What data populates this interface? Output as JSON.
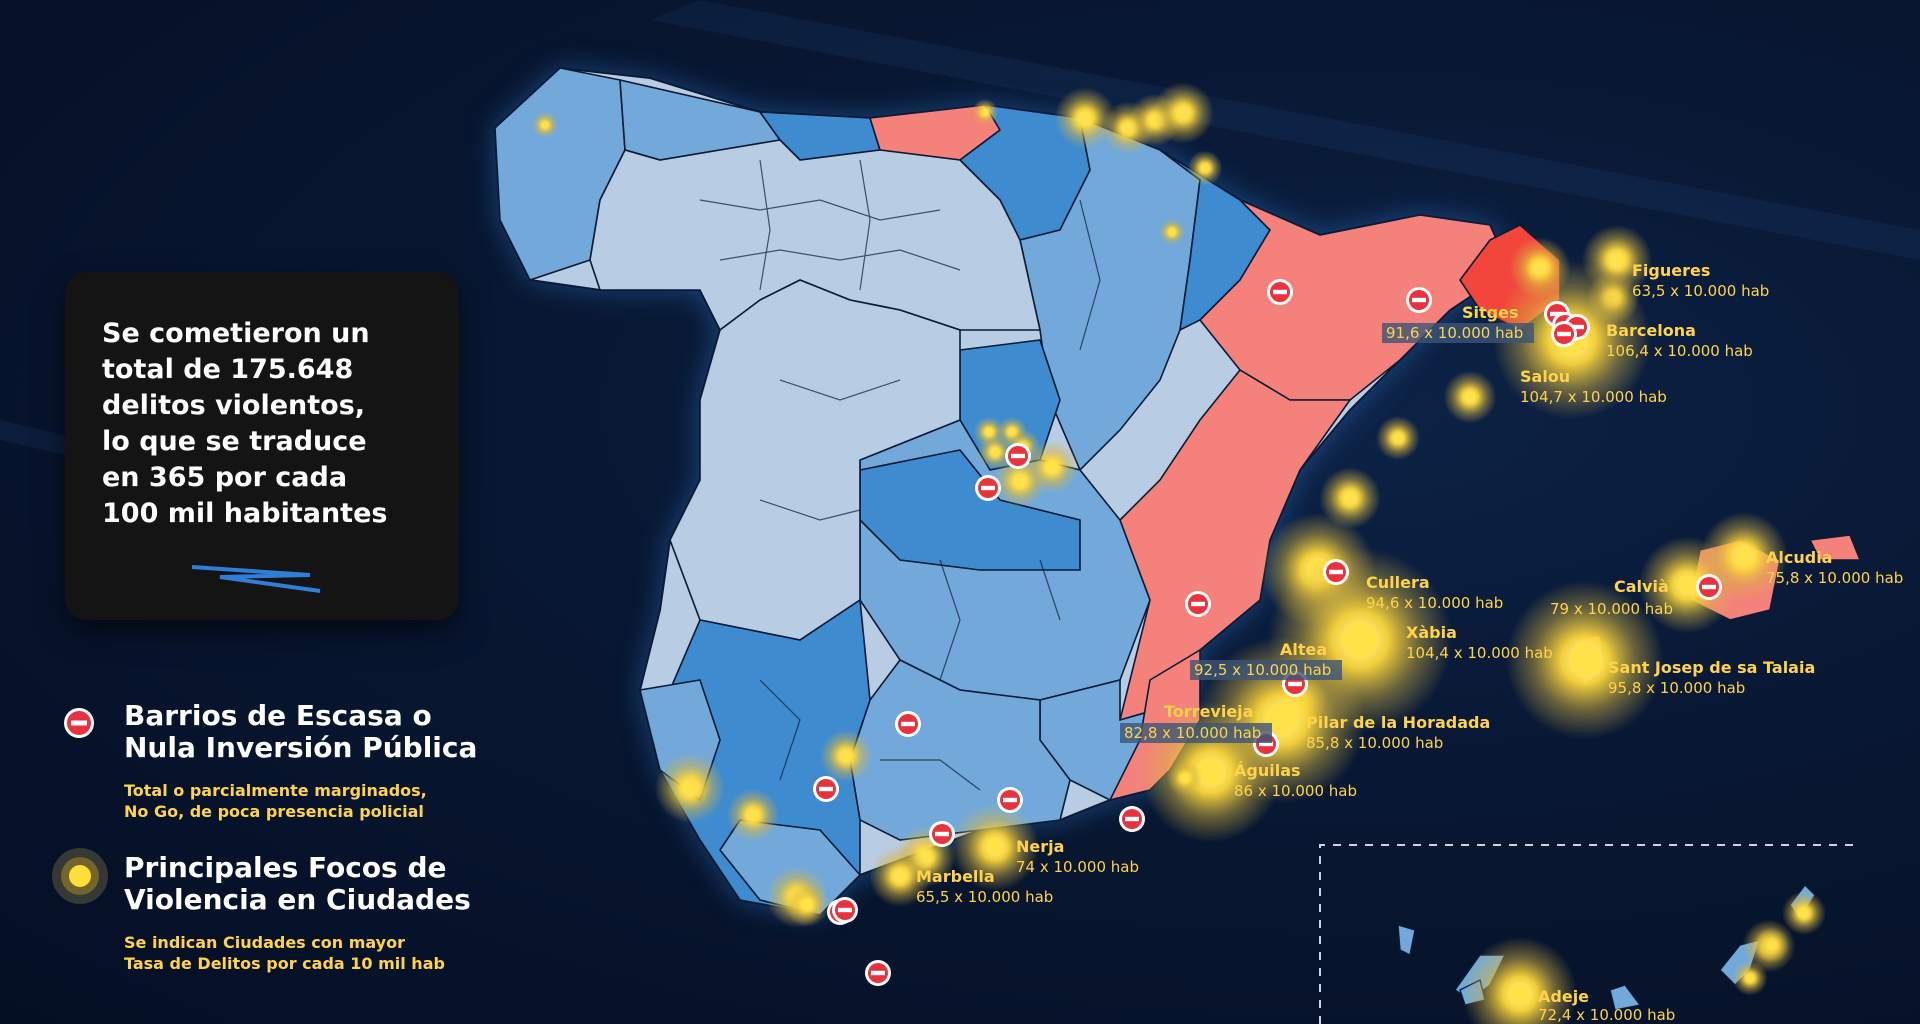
{
  "summary": {
    "lines": [
      "Se cometieron un",
      "total de 175.648",
      "delitos violentos,",
      "lo que se traduce",
      "en 365 por cada",
      "100 mil habitantes"
    ]
  },
  "legend": {
    "barrios_title_1": "Barrios de Escasa o",
    "barrios_title_2": "Nula Inversión Pública",
    "barrios_sub_1": "Total o parcialmente marginados,",
    "barrios_sub_2": "No Go, de poca presencia policial",
    "focos_title_1": "Principales Focos de",
    "focos_title_2": "Violencia en Ciudades",
    "focos_sub_1": "Se indican Ciudades con mayor",
    "focos_sub_2": "Tasa de Delitos por cada 10 mil hab"
  },
  "cities": [
    {
      "name": "Figueres",
      "rate": "63,5 x 10.000 hab"
    },
    {
      "name": "Sitges",
      "rate": "91,6 x 10.000 hab"
    },
    {
      "name": "Barcelona",
      "rate": "106,4 x 10.000 hab"
    },
    {
      "name": "Salou",
      "rate": "104,7 x 10.000 hab"
    },
    {
      "name": "Alcudia",
      "rate": "75,8 x 10.000 hab"
    },
    {
      "name": "Calvià",
      "rate": "79 x 10.000 hab"
    },
    {
      "name": "Cullera",
      "rate": "94,6 x 10.000 hab"
    },
    {
      "name": "Xàbia",
      "rate": "104,4 x 10.000 hab"
    },
    {
      "name": "Altea",
      "rate": "92,5 x 10.000 hab"
    },
    {
      "name": "Sant Josep de sa Talaia",
      "rate": "95,8 x 10.000 hab"
    },
    {
      "name": "Torrevieja",
      "rate": "82,8 x 10.000 hab"
    },
    {
      "name": "Pilar de la Horadada",
      "rate": "85,8 x 10.000 hab"
    },
    {
      "name": "Águilas",
      "rate": "86 x 10.000 hab"
    },
    {
      "name": "Nerja",
      "rate": "74 x 10.000 hab"
    },
    {
      "name": "Marbella",
      "rate": "65,5 x 10.000 hab"
    },
    {
      "name": "Adeje",
      "rate": "72,4 x 10.000 hab"
    }
  ],
  "colors": {
    "background": "#081732",
    "region_light": "#b8cce3",
    "region_mid": "#72a9da",
    "region_dark": "#3e8bd0",
    "region_hot": "#f4827a",
    "region_hotter": "#f2453c",
    "label": "#ffd34a",
    "no_go_icon": "#e8323e"
  },
  "icons": {
    "barrios": "no-entry-icon",
    "focos": "glow-dot-icon"
  }
}
